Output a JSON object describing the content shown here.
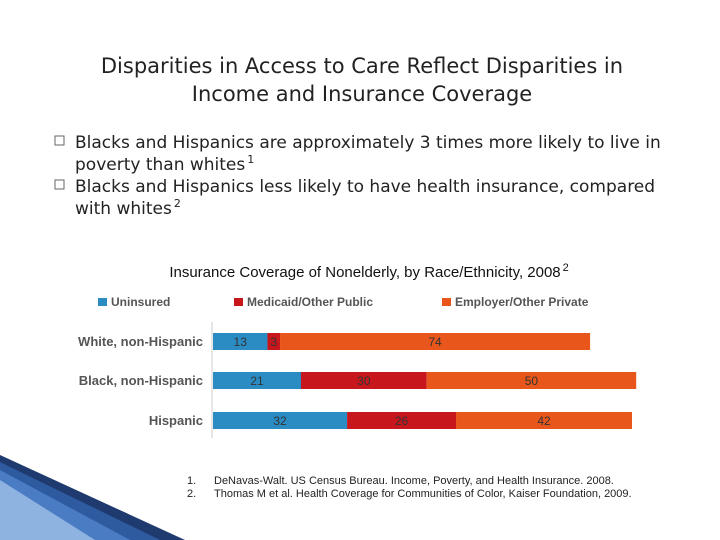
{
  "header": {
    "title_line1": "Disparities in Access to Care Reflect Disparities in",
    "title_line2": "Income and Insurance Coverage"
  },
  "bullets": [
    {
      "lines": [
        "Blacks and Hispanics are approximately 3 times more likely to live in",
        "poverty than whites"
      ],
      "note": "1"
    },
    {
      "lines": [
        "Blacks and Hispanics less likely to have health insurance, compared",
        "with whites"
      ],
      "note": "2"
    }
  ],
  "chart_data": {
    "type": "stacked-barh",
    "title": "Insurance Coverage of Nonelderly, by Race/Ethnicity, 2008",
    "title_note": "2",
    "categories": [
      "White, non-Hispanic",
      "Black, non-Hispanic",
      "Hispanic"
    ],
    "series": [
      {
        "name": "Uninsured",
        "color": "#2b8cc4",
        "values": [
          13,
          21,
          32
        ]
      },
      {
        "name": "Medicaid/Other Public",
        "color": "#c8161d",
        "values": [
          3,
          30,
          26
        ]
      },
      {
        "name": "Employer/Other Private",
        "color": "#e8561c",
        "values": [
          74,
          50,
          42
        ]
      }
    ],
    "xlim": [
      0,
      100
    ],
    "legend": "top"
  },
  "footnotes": [
    {
      "number": "1.",
      "text": "DeNavas-Walt. US Census Bureau. Income, Poverty, and Health Insurance. 2008."
    },
    {
      "number": "2.",
      "text": "Thomas M et al. Health Coverage for Communities of Color, Kaiser Foundation, 2009."
    }
  ]
}
